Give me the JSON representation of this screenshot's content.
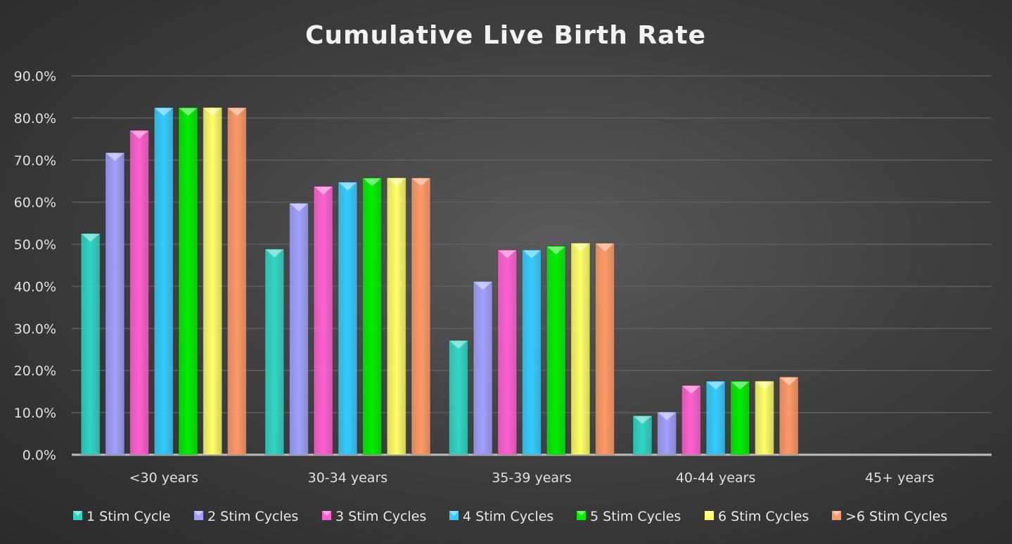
{
  "chart_data": {
    "type": "bar",
    "title": "Cumulative Live Birth Rate",
    "xlabel": "",
    "ylabel": "",
    "ylim": [
      0,
      90
    ],
    "yticks": [
      "0.0%",
      "10.0%",
      "20.0%",
      "30.0%",
      "40.0%",
      "50.0%",
      "60.0%",
      "70.0%",
      "80.0%",
      "90.0%"
    ],
    "grid": true,
    "legend_position": "bottom",
    "categories": [
      "<30 years",
      "30-34 years",
      "35-39 years",
      "40-44 years",
      "45+ years"
    ],
    "series": [
      {
        "name": "1 Stim Cycle",
        "color": "#2fd6c6",
        "values": [
          52.6,
          48.9,
          27.2,
          9.3,
          0
        ]
      },
      {
        "name": "2 Stim Cycles",
        "color": "#a0a0ff",
        "values": [
          71.8,
          59.8,
          41.2,
          10.2,
          0
        ]
      },
      {
        "name": "3 Stim Cycles",
        "color": "#ff5fd0",
        "values": [
          77.1,
          63.8,
          48.7,
          16.5,
          0
        ]
      },
      {
        "name": "4 Stim Cycles",
        "color": "#33ccff",
        "values": [
          82.5,
          64.8,
          48.7,
          17.5,
          0
        ]
      },
      {
        "name": "5 Stim Cycles",
        "color": "#00ee00",
        "values": [
          82.5,
          65.8,
          49.6,
          17.5,
          0
        ]
      },
      {
        "name": "6 Stim Cycles",
        "color": "#ffff66",
        "values": [
          82.5,
          65.8,
          50.3,
          17.5,
          0
        ]
      },
      {
        "name": ">6 Stim Cycles",
        "color": "#ff9966",
        "values": [
          82.5,
          65.8,
          50.3,
          18.5,
          0
        ]
      }
    ]
  }
}
